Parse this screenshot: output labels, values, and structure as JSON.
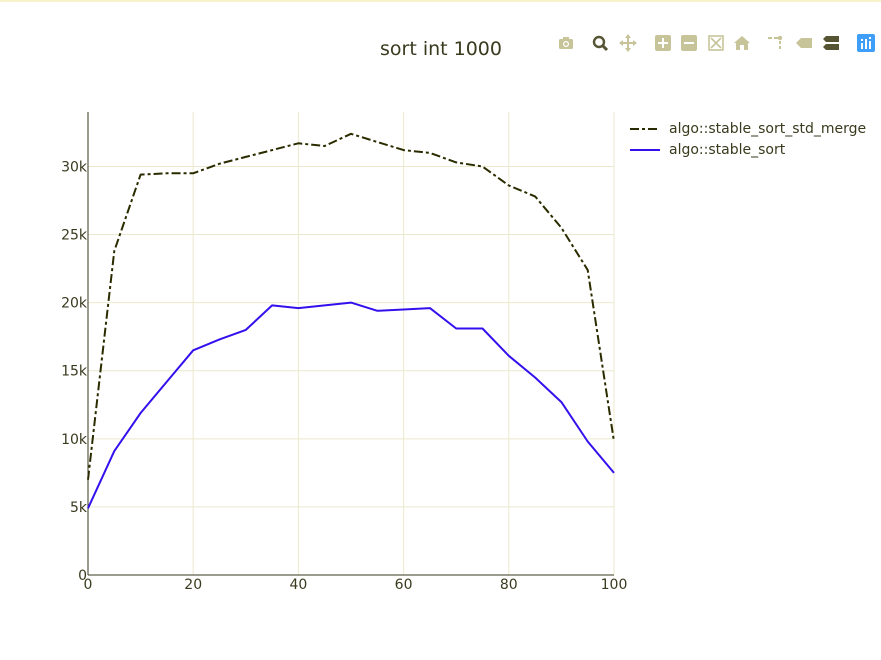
{
  "chart_data": {
    "type": "line",
    "title": "sort int 1000",
    "xlabel": "",
    "ylabel": "",
    "xlim": [
      0,
      100
    ],
    "ylim": [
      0,
      34000
    ],
    "x_ticks": [
      "0",
      "20",
      "40",
      "60",
      "80",
      "100"
    ],
    "x_tick_values": [
      0,
      20,
      40,
      60,
      80,
      100
    ],
    "y_ticks": [
      "0",
      "5k",
      "10k",
      "15k",
      "20k",
      "25k",
      "30k"
    ],
    "y_tick_values": [
      0,
      5000,
      10000,
      15000,
      20000,
      25000,
      30000
    ],
    "grid": true,
    "legend_position": "top-right",
    "x": [
      0,
      5,
      10,
      15,
      20,
      25,
      30,
      35,
      40,
      45,
      50,
      55,
      60,
      65,
      70,
      75,
      80,
      85,
      90,
      95,
      100
    ],
    "series": [
      {
        "name": "algo::stable_sort_std_merge",
        "color": "#2b2b00",
        "dash": "dashdot",
        "values": [
          7000,
          23800,
          29400,
          29500,
          29500,
          30200,
          30700,
          31200,
          31700,
          31500,
          32400,
          31800,
          31200,
          31000,
          30300,
          30000,
          28600,
          27800,
          25500,
          22400,
          9800
        ]
      },
      {
        "name": "algo::stable_sort",
        "color": "#3311ee",
        "dash": "solid",
        "values": [
          4900,
          9100,
          11900,
          14200,
          16500,
          17300,
          18000,
          19800,
          19600,
          19800,
          20000,
          19400,
          19500,
          19600,
          18100,
          18100,
          16100,
          14500,
          12700,
          9800,
          7500
        ]
      }
    ]
  },
  "modebar": {
    "buttons": [
      {
        "icon": "camera-icon"
      },
      {
        "icon": "zoom-icon"
      },
      {
        "icon": "pan-icon"
      },
      {
        "icon": "zoom-in-icon"
      },
      {
        "icon": "zoom-out-icon"
      },
      {
        "icon": "autoscale-icon"
      },
      {
        "icon": "reset-axes-icon"
      },
      {
        "icon": "spike-lines-icon"
      },
      {
        "icon": "hover-closest-icon"
      },
      {
        "icon": "hover-compare-icon"
      },
      {
        "icon": "plotly-logo-icon"
      }
    ],
    "colors": {
      "default": "#c8c49a",
      "active": "#555533",
      "logo": "#3f9ff8"
    }
  }
}
